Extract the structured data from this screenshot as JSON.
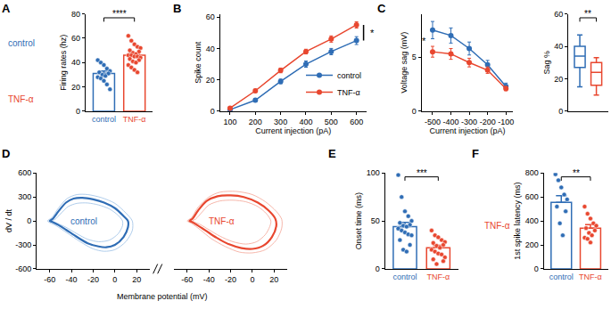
{
  "chart_data": [
    {
      "title": "A",
      "type": "bar",
      "inset_labels": [
        "control",
        "TNF-α"
      ],
      "categories": [
        "control",
        "TNF-α"
      ],
      "colors": [
        "#2f6db5",
        "#e8472f"
      ],
      "values": [
        31,
        46
      ],
      "errors": [
        2.1,
        1.6
      ],
      "points": [
        [
          42,
          40,
          38,
          35,
          33,
          32,
          31,
          30,
          29,
          28,
          27,
          25,
          22,
          18
        ],
        [
          62,
          58,
          55,
          53,
          52,
          50,
          49,
          48,
          47,
          46,
          46,
          45,
          45,
          44,
          43,
          42,
          41,
          40,
          38,
          36,
          34,
          32
        ]
      ],
      "y_label": "Firing rates (hz)",
      "ylim": [
        0,
        80
      ],
      "yticks": [
        0,
        20,
        40,
        60,
        80
      ],
      "significance": "****"
    },
    {
      "title": "B",
      "type": "line",
      "x": [
        100,
        200,
        300,
        400,
        500,
        600
      ],
      "series": [
        {
          "name": "control",
          "color": "#2f6db5",
          "marker": "circle",
          "values": [
            1,
            7,
            19,
            30,
            38,
            45
          ],
          "errors": [
            0.5,
            1,
            1.5,
            2,
            2,
            2.5
          ]
        },
        {
          "name": "TNF-α",
          "color": "#e8472f",
          "marker": "circle",
          "values": [
            2,
            13,
            26,
            38,
            46,
            55
          ],
          "errors": [
            0.5,
            1,
            1.5,
            1.5,
            2,
            2
          ]
        }
      ],
      "x_label": "Current injection (pA)",
      "y_label": "Spike count",
      "xlim": [
        60,
        640
      ],
      "xticks": [
        100,
        200,
        300,
        400,
        500,
        600
      ],
      "ylim": [
        0,
        62
      ],
      "yticks": [
        0,
        20,
        40,
        60
      ],
      "legend": "lower right",
      "significance": "*"
    },
    {
      "title": "C",
      "type": "line",
      "x": [
        -500,
        -400,
        -300,
        -200,
        -100
      ],
      "series": [
        {
          "name": "control",
          "color": "#2f6db5",
          "marker": "circle",
          "values": [
            7.5,
            7.0,
            5.8,
            4.3,
            2.3
          ],
          "errors": [
            0.8,
            0.7,
            0.6,
            0.4,
            0.3
          ]
        },
        {
          "name": "TNF-α",
          "color": "#e8472f",
          "marker": "circle",
          "values": [
            5.5,
            5.3,
            4.5,
            3.8,
            2.1
          ],
          "errors": [
            0.5,
            0.5,
            0.4,
            0.3,
            0.2
          ]
        }
      ],
      "x_label": "Current injection (pA)",
      "y_label": "Voltage sag (mV)",
      "xlim": [
        -560,
        -60
      ],
      "xticks": [
        -500,
        -400,
        -300,
        -200,
        -100
      ],
      "ylim": [
        0,
        9
      ],
      "yticks": [
        0,
        5
      ],
      "significance": "*"
    },
    {
      "type": "box",
      "series": [
        {
          "color": "#2f6db5",
          "min": 15,
          "q1": 27,
          "median": 34,
          "q3": 40,
          "max": 47
        },
        {
          "color": "#e8472f",
          "min": 10,
          "q1": 16,
          "median": 24,
          "q3": 30,
          "max": 33
        }
      ],
      "y_label": "Sag %",
      "ylim": [
        0,
        60
      ],
      "yticks": [
        0,
        20,
        40,
        60
      ],
      "tick_labels": "y",
      "significance": "**"
    },
    {
      "title": "D",
      "type": "line",
      "x_label": "Membrane potential (mV)",
      "y_label": "dV / dt",
      "xlim": [
        -72,
        32
      ],
      "xticks": [
        -60,
        -40,
        -20,
        0,
        20
      ],
      "ylim": [
        -600,
        600
      ],
      "yticks": [
        -600,
        -300,
        0,
        300,
        600
      ],
      "panels": [
        {
          "label": "control",
          "color": "#2f6db5",
          "series": [
            {
              "color": "#2f6db5",
              "x": [
                -60,
                -57,
                -52,
                -45,
                -38,
                -30,
                -20,
                -10,
                0,
                8,
                12,
                12,
                8,
                0,
                -8,
                -15,
                -25,
                -35,
                -45,
                -52,
                -58,
                -60
              ],
              "values": [
                0,
                30,
                120,
                230,
                280,
                290,
                270,
                230,
                160,
                60,
                0,
                -80,
                -200,
                -300,
                -330,
                -320,
                -280,
                -200,
                -110,
                -50,
                -10,
                0
              ]
            },
            {
              "color": "#9cc0e6",
              "x": [
                -62,
                -58,
                -52,
                -44,
                -35,
                -25,
                -12,
                0,
                10,
                16,
                16,
                10,
                0,
                -10,
                -20,
                -32,
                -44,
                -54,
                -62
              ],
              "values": [
                0,
                40,
                160,
                280,
                330,
                330,
                290,
                220,
                100,
                0,
                -120,
                -260,
                -360,
                -380,
                -350,
                -260,
                -150,
                -60,
                0
              ]
            },
            {
              "color": "#9cc0e6",
              "x": [
                -58,
                -55,
                -50,
                -43,
                -35,
                -25,
                -15,
                -5,
                3,
                7,
                7,
                3,
                -5,
                -15,
                -25,
                -35,
                -45,
                -53,
                -58
              ],
              "values": [
                0,
                20,
                90,
                180,
                220,
                225,
                200,
                150,
                70,
                0,
                -60,
                -160,
                -240,
                -260,
                -230,
                -160,
                -80,
                -30,
                0
              ]
            }
          ]
        },
        {
          "label": "TNF-α",
          "color": "#e8472f",
          "series": [
            {
              "color": "#e8472f",
              "x": [
                -58,
                -55,
                -50,
                -42,
                -32,
                -20,
                -8,
                5,
                15,
                21,
                22,
                18,
                10,
                0,
                -10,
                -22,
                -33,
                -43,
                -51,
                -56,
                -58
              ],
              "values": [
                0,
                30,
                130,
                250,
                310,
                320,
                300,
                230,
                130,
                30,
                -60,
                -200,
                -310,
                -350,
                -340,
                -290,
                -210,
                -120,
                -50,
                -10,
                0
              ]
            },
            {
              "color": "#f4a496",
              "x": [
                -60,
                -56,
                -50,
                -40,
                -30,
                -15,
                0,
                12,
                22,
                27,
                27,
                22,
                12,
                0,
                -12,
                -25,
                -38,
                -48,
                -56,
                -60
              ],
              "values": [
                0,
                40,
                170,
                300,
                360,
                370,
                330,
                240,
                120,
                20,
                -90,
                -240,
                -360,
                -400,
                -390,
                -320,
                -220,
                -110,
                -30,
                0
              ]
            },
            {
              "color": "#f4a496",
              "x": [
                -55,
                -52,
                -47,
                -40,
                -30,
                -18,
                -6,
                5,
                13,
                17,
                16,
                12,
                4,
                -6,
                -18,
                -30,
                -40,
                -48,
                -55
              ],
              "values": [
                0,
                25,
                100,
                200,
                250,
                260,
                240,
                180,
                90,
                0,
                -70,
                -170,
                -260,
                -290,
                -260,
                -190,
                -110,
                -45,
                0
              ]
            }
          ]
        }
      ]
    },
    {
      "title": "E",
      "type": "bar",
      "categories": [
        "control",
        "TNF-α"
      ],
      "colors": [
        "#2f6db5",
        "#e8472f"
      ],
      "values": [
        44,
        22
      ],
      "errors": [
        4.5,
        2.6
      ],
      "points": [
        [
          98,
          75,
          60,
          55,
          50,
          48,
          46,
          45,
          44,
          42,
          40,
          38,
          36,
          35,
          30,
          25,
          20,
          18
        ],
        [
          40,
          35,
          33,
          30,
          28,
          27,
          25,
          24,
          22,
          20,
          18,
          16,
          15,
          12,
          10,
          8,
          5
        ]
      ],
      "y_label": "Onset time (ms)",
      "ylim": [
        0,
        100
      ],
      "yticks": [
        0,
        50,
        100
      ],
      "significance": "***"
    },
    {
      "title": "F",
      "type": "bar",
      "inset_labels": [
        "TNF-α"
      ],
      "categories": [
        "control",
        "TNF-α"
      ],
      "colors": [
        "#2f6db5",
        "#e8472f"
      ],
      "values": [
        555,
        340
      ],
      "errors": [
        55,
        30
      ],
      "points": [
        [
          790,
          740,
          680,
          620,
          580,
          520,
          480,
          380,
          280
        ],
        [
          520,
          460,
          420,
          380,
          360,
          340,
          320,
          300,
          280,
          260,
          250,
          220
        ]
      ],
      "y_label": "1st spike latency (ms)",
      "ylim": [
        0,
        800
      ],
      "yticks": [
        0,
        200,
        400,
        600,
        800
      ],
      "significance": "**"
    }
  ]
}
